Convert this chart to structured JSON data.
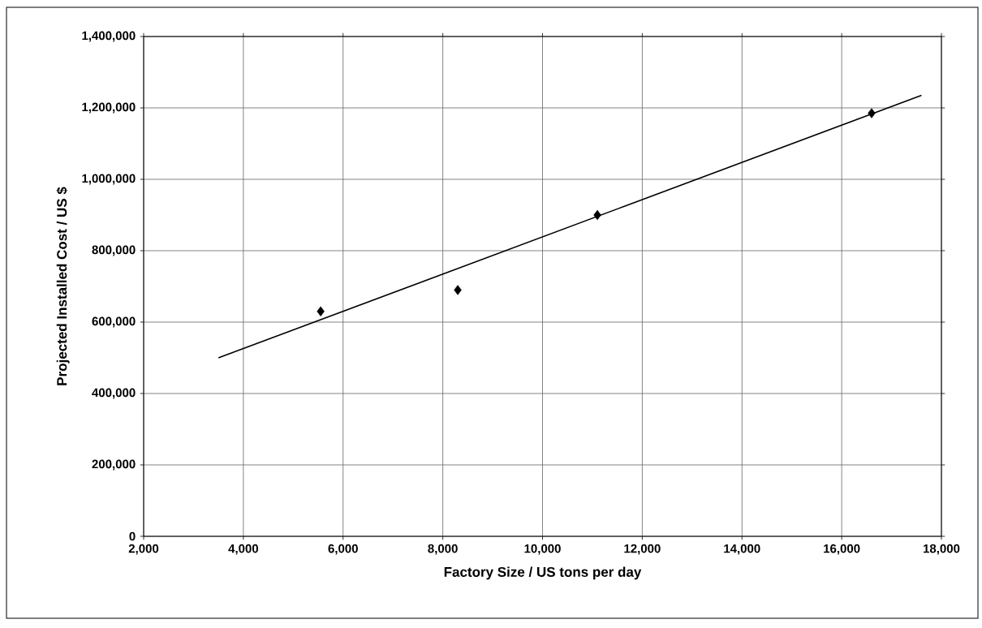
{
  "chart_data": {
    "type": "scatter",
    "xlabel": "Factory Size  /  US tons per day",
    "ylabel": "Projected Installed Cost  /  US $",
    "series": [
      {
        "marker": "diamond",
        "color": "#000000",
        "x": [
          5550,
          8300,
          11100,
          16600
        ],
        "values": [
          630000,
          690000,
          900000,
          1185000
        ]
      },
      {
        "type": "line",
        "marker": "none",
        "line_style": "solid",
        "color": "#000000",
        "x": [
          3500,
          17600
        ],
        "values": [
          500000,
          1235000
        ]
      }
    ],
    "xlim": [
      2000,
      18000
    ],
    "xticks": [
      {
        "value": 2000,
        "label": "2,000"
      },
      {
        "value": 4000,
        "label": "4,000"
      },
      {
        "value": 6000,
        "label": "6,000"
      },
      {
        "value": 8000,
        "label": "8,000"
      },
      {
        "value": 10000,
        "label": "10,000"
      },
      {
        "value": 12000,
        "label": "12,000"
      },
      {
        "value": 14000,
        "label": "14,000"
      },
      {
        "value": 16000,
        "label": "16,000"
      },
      {
        "value": 18000,
        "label": "18,000"
      }
    ],
    "ylim": [
      0,
      1400000
    ],
    "yticks": [
      0,
      {
        "value": 200000,
        "label": "200,000"
      },
      {
        "value": 400000,
        "label": "400,000"
      },
      {
        "value": 600000,
        "label": "600,000"
      },
      {
        "value": 800000,
        "label": "800,000"
      },
      {
        "value": 1000000,
        "label": "1,000,000"
      },
      {
        "value": 1200000,
        "label": "1,200,000"
      },
      {
        "value": 1400000,
        "label": "1,400,000"
      }
    ],
    "grid": true
  }
}
